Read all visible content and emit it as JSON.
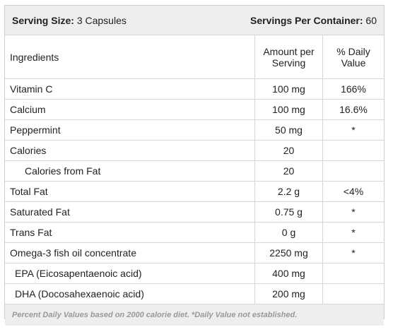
{
  "header": {
    "serving_size_label": "Serving Size:",
    "serving_size_value": "3 Capsules",
    "servings_label": "Servings Per Container:",
    "servings_value": "60"
  },
  "columns": {
    "ingredients": "Ingredients",
    "amount_line1": "Amount per",
    "amount_line2": "Serving",
    "daily_value": "% Daily Value"
  },
  "rows": [
    {
      "name": "Vitamin C",
      "amount": "100 mg",
      "dv": "166%"
    },
    {
      "name": "Calcium",
      "amount": "100 mg",
      "dv": "16.6%"
    },
    {
      "name": "Peppermint",
      "amount": "50 mg",
      "dv": "*"
    },
    {
      "name": "Calories",
      "amount": "20",
      "dv": ""
    },
    {
      "name": "Calories from Fat",
      "amount": "20",
      "dv": ""
    },
    {
      "name": "Total Fat",
      "amount": "2.2 g",
      "dv": "<4%"
    },
    {
      "name": "Saturated Fat",
      "amount": "0.75 g",
      "dv": "*"
    },
    {
      "name": "Trans Fat",
      "amount": "0 g",
      "dv": "*"
    },
    {
      "name": "Omega-3 fish oil concentrate",
      "amount": "2250 mg",
      "dv": "*"
    },
    {
      "name": "EPA (Eicosapentaenoic acid)",
      "amount": "400 mg",
      "dv": ""
    },
    {
      "name": "DHA (Docosahexaenoic acid)",
      "amount": "200 mg",
      "dv": ""
    }
  ],
  "footnote": "Percent Daily Values based on 2000 calorie diet. *Daily Value not established."
}
